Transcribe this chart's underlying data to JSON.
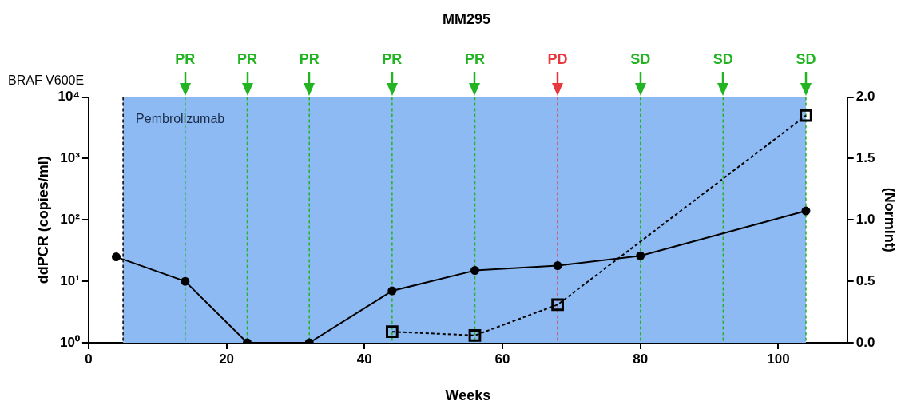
{
  "chart_data": {
    "type": "line",
    "title": "MM295",
    "xlabel": "Weeks",
    "ylabel": "ddPCR (copies/ml)",
    "y2label": "(NormInt)",
    "annotations": [
      "BRAF V600E"
    ],
    "log": "y",
    "grid": false,
    "legend": false,
    "xlim": [
      0,
      110
    ],
    "xticks": [
      0,
      20,
      40,
      60,
      80,
      100
    ],
    "ylim": [
      1,
      10000
    ],
    "yticks": [
      {
        "value": 1,
        "label": "10⁰"
      },
      {
        "value": 10,
        "label": "10¹"
      },
      {
        "value": 100,
        "label": "10²"
      },
      {
        "value": 1000,
        "label": "10³"
      },
      {
        "value": 10000,
        "label": "10⁴"
      }
    ],
    "y2lim": [
      0,
      2
    ],
    "y2ticks": [
      {
        "value": 0,
        "label": "0.0"
      },
      0.5,
      {
        "value": 1,
        "label": "1.0"
      },
      1.5,
      {
        "value": 2,
        "label": "2.0"
      }
    ],
    "series": [
      {
        "color": "#000000",
        "x": [
          4,
          14,
          23,
          32,
          44,
          56,
          68,
          80,
          104
        ],
        "values": [
          25,
          10,
          1,
          1,
          7,
          15,
          18,
          26,
          140
        ],
        "marker": "circle",
        "line_style": "solid"
      },
      {
        "color": "#000000",
        "axis": "y2",
        "x": [
          44,
          56,
          68,
          104
        ],
        "values": [
          0.09,
          0.06,
          0.31,
          1.85
        ],
        "marker": "square",
        "line_style": "dashed"
      }
    ],
    "bands": [
      {
        "axis": "x",
        "from": 5,
        "to": 104,
        "label": "Pembrolizumab",
        "color": "#8dbaf2"
      }
    ],
    "ref_lines": [
      {
        "axis": "x",
        "value": 5,
        "line_style": "dashed",
        "color": "#000000"
      },
      {
        "axis": "x",
        "value": 14,
        "label": "PR",
        "color": "#22b422",
        "line_style": "dashed"
      },
      {
        "axis": "x",
        "value": 23,
        "label": "PR",
        "color": "#22b422",
        "line_style": "dashed"
      },
      {
        "axis": "x",
        "value": 32,
        "label": "PR",
        "color": "#22b422",
        "line_style": "dashed"
      },
      {
        "axis": "x",
        "value": 44,
        "label": "PR",
        "color": "#22b422",
        "line_style": "dashed"
      },
      {
        "axis": "x",
        "value": 56,
        "label": "PR",
        "color": "#22b422",
        "line_style": "dashed"
      },
      {
        "axis": "x",
        "value": 68,
        "label": "PD",
        "color": "#e8383d",
        "line_style": "dashed"
      },
      {
        "axis": "x",
        "value": 80,
        "label": "SD",
        "color": "#22b422",
        "line_style": "dashed"
      },
      {
        "axis": "x",
        "value": 92,
        "label": "SD",
        "color": "#22b422",
        "line_style": "dashed"
      },
      {
        "axis": "x",
        "value": 104,
        "label": "SD",
        "color": "#22b422",
        "line_style": "dashed"
      }
    ]
  }
}
